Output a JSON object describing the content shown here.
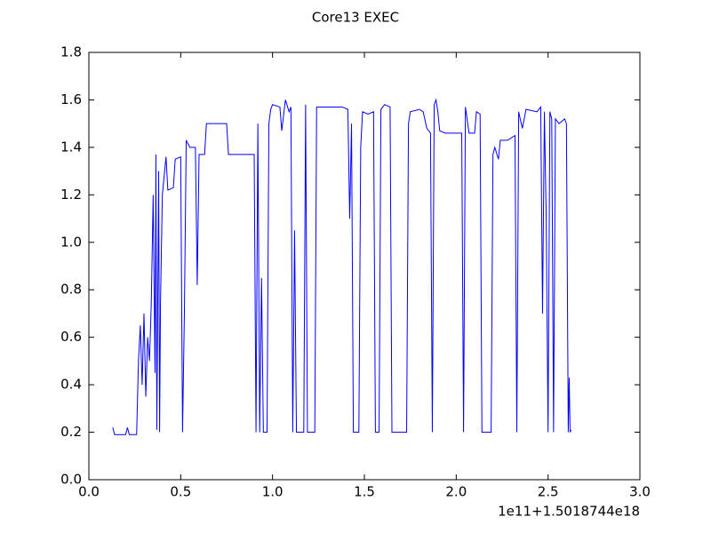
{
  "chart_data": {
    "type": "line",
    "title": "Core13 EXEC",
    "x_offset_label": "1e11+1.5018744e18",
    "xlim": [
      0,
      3
    ],
    "ylim": [
      0,
      1.8
    ],
    "xticks": [
      {
        "value": 0,
        "label": "0.0"
      },
      {
        "value": 0.5,
        "label": "0.5"
      },
      {
        "value": 1,
        "label": "1.0"
      },
      {
        "value": 1.5,
        "label": "1.5"
      },
      {
        "value": 2,
        "label": "2.0"
      },
      {
        "value": 2.5,
        "label": "2.5"
      },
      {
        "value": 3,
        "label": "3.0"
      }
    ],
    "yticks": [
      {
        "value": 0,
        "label": "0.0"
      },
      {
        "value": 0.2,
        "label": "0.2"
      },
      {
        "value": 0.4,
        "label": "0.4"
      },
      {
        "value": 0.6,
        "label": "0.6"
      },
      {
        "value": 0.8,
        "label": "0.8"
      },
      {
        "value": 1,
        "label": "1.0"
      },
      {
        "value": 1.2,
        "label": "1.2"
      },
      {
        "value": 1.4,
        "label": "1.4"
      },
      {
        "value": 1.6,
        "label": "1.6"
      },
      {
        "value": 1.8,
        "label": "1.8"
      }
    ],
    "grid": false,
    "x": [
      0.13,
      0.14,
      0.2,
      0.21,
      0.22,
      0.26,
      0.27,
      0.28,
      0.29,
      0.3,
      0.31,
      0.32,
      0.33,
      0.34,
      0.35,
      0.36,
      0.365,
      0.37,
      0.38,
      0.385,
      0.39,
      0.4,
      0.42,
      0.43,
      0.46,
      0.47,
      0.5,
      0.51,
      0.52,
      0.53,
      0.55,
      0.58,
      0.59,
      0.6,
      0.63,
      0.64,
      0.75,
      0.76,
      0.9,
      0.91,
      0.92,
      0.93,
      0.94,
      0.95,
      0.97,
      0.98,
      0.99,
      1.0,
      1.04,
      1.05,
      1.07,
      1.09,
      1.1,
      1.11,
      1.12,
      1.13,
      1.17,
      1.18,
      1.19,
      1.23,
      1.24,
      1.3,
      1.38,
      1.41,
      1.42,
      1.43,
      1.44,
      1.47,
      1.48,
      1.49,
      1.52,
      1.55,
      1.56,
      1.58,
      1.59,
      1.61,
      1.64,
      1.65,
      1.73,
      1.74,
      1.75,
      1.8,
      1.82,
      1.84,
      1.86,
      1.87,
      1.88,
      1.89,
      1.9,
      1.91,
      1.94,
      1.96,
      2.03,
      2.04,
      2.05,
      2.07,
      2.1,
      2.11,
      2.13,
      2.14,
      2.19,
      2.2,
      2.21,
      2.23,
      2.24,
      2.28,
      2.32,
      2.33,
      2.34,
      2.36,
      2.38,
      2.44,
      2.46,
      2.47,
      2.48,
      2.49,
      2.5,
      2.51,
      2.52,
      2.53,
      2.54,
      2.56,
      2.59,
      2.6,
      2.61,
      2.615,
      2.62,
      2.625
    ],
    "series": [
      {
        "color": "#0000ff",
        "values": [
          0.22,
          0.19,
          0.19,
          0.22,
          0.19,
          0.19,
          0.5,
          0.65,
          0.4,
          0.7,
          0.35,
          0.6,
          0.5,
          0.75,
          1.2,
          0.45,
          1.37,
          0.21,
          1.3,
          0.2,
          0.75,
          1.2,
          1.36,
          1.22,
          1.23,
          1.35,
          1.36,
          0.2,
          0.7,
          1.43,
          1.4,
          1.4,
          0.82,
          1.37,
          1.37,
          1.5,
          1.5,
          1.37,
          1.37,
          0.2,
          1.5,
          0.2,
          0.85,
          0.2,
          0.2,
          1.5,
          1.56,
          1.58,
          1.57,
          1.47,
          1.6,
          1.55,
          1.57,
          0.2,
          1.05,
          0.2,
          0.2,
          1.58,
          0.2,
          0.2,
          1.57,
          1.57,
          1.57,
          1.56,
          1.1,
          1.5,
          0.2,
          0.2,
          1.4,
          1.55,
          1.54,
          1.55,
          0.2,
          0.2,
          1.56,
          1.58,
          1.57,
          0.2,
          0.2,
          1.5,
          1.55,
          1.56,
          1.55,
          1.48,
          1.46,
          0.2,
          1.58,
          1.6,
          1.55,
          1.47,
          1.46,
          1.46,
          1.46,
          0.2,
          1.57,
          1.46,
          1.46,
          1.55,
          1.54,
          0.2,
          0.2,
          1.37,
          1.4,
          1.35,
          1.43,
          1.43,
          1.45,
          0.2,
          1.55,
          1.48,
          1.56,
          1.55,
          1.57,
          0.7,
          1.55,
          1.1,
          0.2,
          1.55,
          1.52,
          0.2,
          1.52,
          1.5,
          1.52,
          1.5,
          0.2,
          0.43,
          0.2,
          0.21
        ]
      }
    ]
  }
}
